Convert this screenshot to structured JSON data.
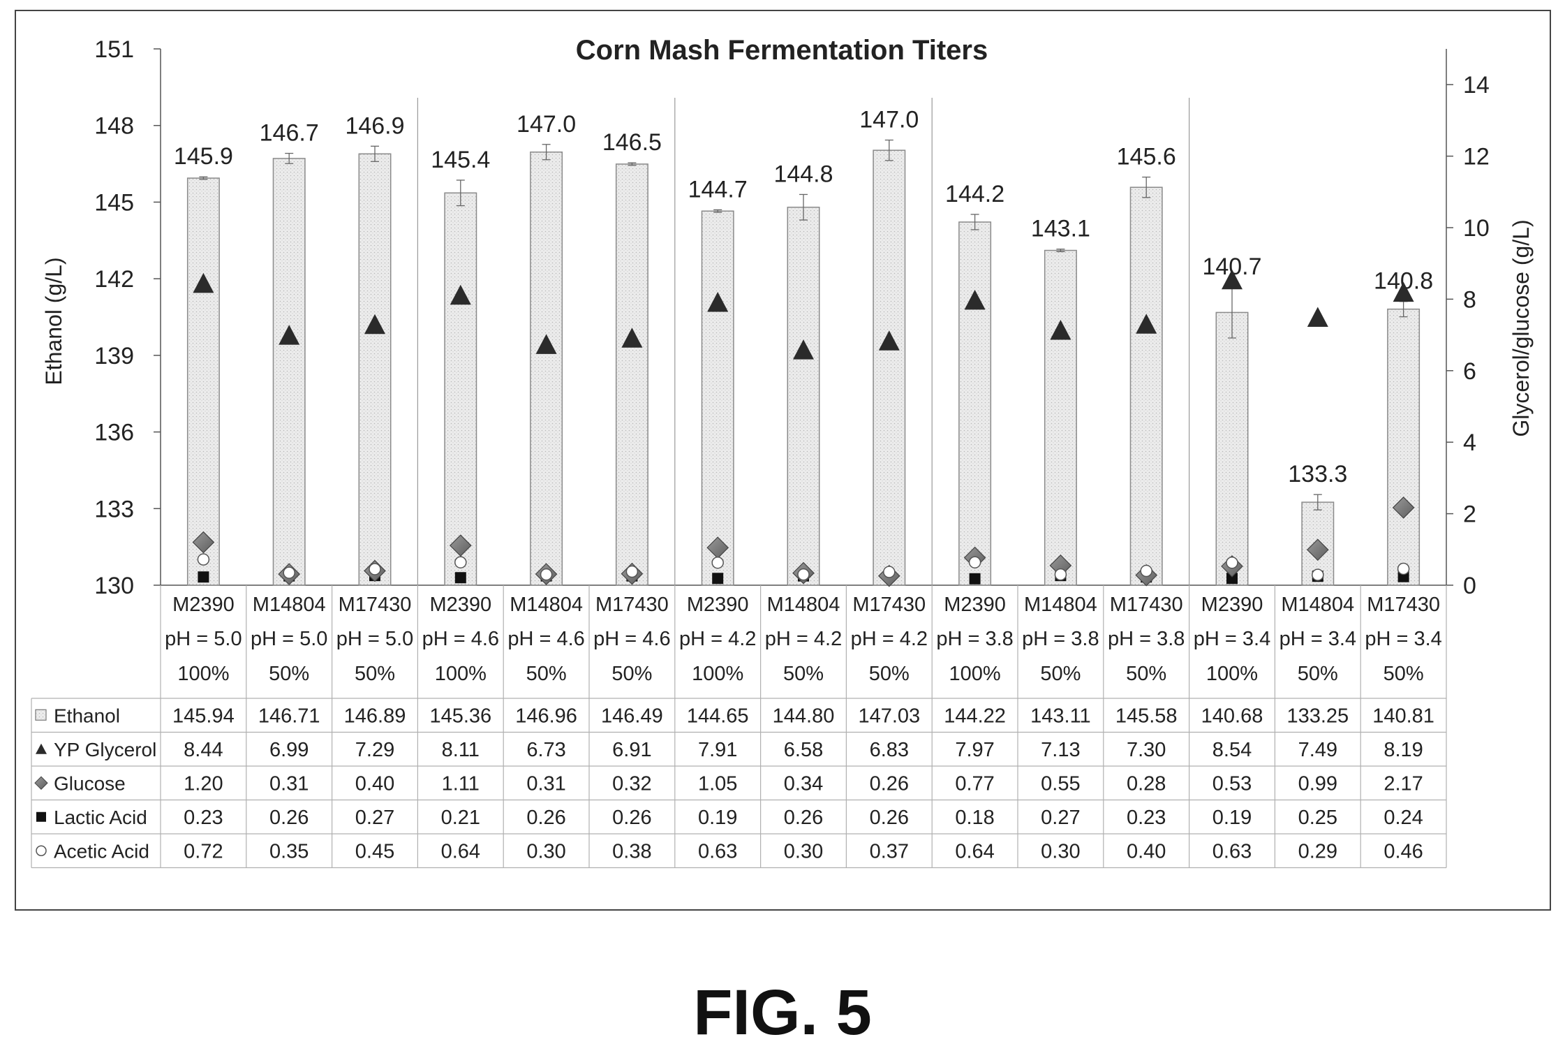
{
  "chart_data": {
    "type": "bar",
    "title": "Corn Mash Fermentation Titers",
    "ylabel": "Ethanol (g/L)",
    "y2label": "Glycerol/glucose (g/L)",
    "ylim": [
      130,
      151
    ],
    "yticks": [
      "130",
      "133",
      "136",
      "139",
      "142",
      "145",
      "148",
      "151"
    ],
    "y2lim": [
      0,
      15
    ],
    "y2ticks": [
      "0",
      "2",
      "4",
      "6",
      "8",
      "10",
      "12",
      "14"
    ],
    "grid": false,
    "groups": 5,
    "categories": [
      [
        "M2390",
        "pH = 5.0",
        "100%"
      ],
      [
        "M14804",
        "pH = 5.0",
        "50%"
      ],
      [
        "M17430",
        "pH = 5.0",
        "50%"
      ],
      [
        "M2390",
        "pH = 4.6",
        "100%"
      ],
      [
        "M14804",
        "pH = 4.6",
        "50%"
      ],
      [
        "M17430",
        "pH = 4.6",
        "50%"
      ],
      [
        "M2390",
        "pH = 4.2",
        "100%"
      ],
      [
        "M14804",
        "pH = 4.2",
        "50%"
      ],
      [
        "M17430",
        "pH = 4.2",
        "50%"
      ],
      [
        "M2390",
        "pH = 3.8",
        "100%"
      ],
      [
        "M14804",
        "pH = 3.8",
        "50%"
      ],
      [
        "M17430",
        "pH = 3.8",
        "50%"
      ],
      [
        "M2390",
        "pH = 3.4",
        "100%"
      ],
      [
        "M14804",
        "pH = 3.4",
        "50%"
      ],
      [
        "M17430",
        "pH = 3.4",
        "50%"
      ]
    ],
    "bar_labels": [
      "145.9",
      "146.7",
      "146.9",
      "145.4",
      "147.0",
      "146.5",
      "144.7",
      "144.8",
      "147.0",
      "144.2",
      "143.1",
      "145.6",
      "140.7",
      "133.3",
      "140.8"
    ],
    "series": [
      {
        "name": "Ethanol",
        "marker": "bar",
        "axis": "left",
        "values": [
          145.94,
          146.71,
          146.89,
          145.36,
          146.96,
          146.49,
          144.65,
          144.8,
          147.03,
          144.22,
          143.11,
          145.58,
          140.68,
          133.25,
          140.81
        ],
        "labels": [
          "145.94",
          "146.71",
          "146.89",
          "145.36",
          "146.96",
          "146.49",
          "144.65",
          "144.80",
          "147.03",
          "144.22",
          "143.11",
          "145.58",
          "140.68",
          "133.25",
          "140.81"
        ],
        "error": [
          0.05,
          0.2,
          0.3,
          0.5,
          0.3,
          0.05,
          0.05,
          0.5,
          0.4,
          0.3,
          0.05,
          0.4,
          1.0,
          0.3,
          0.3
        ]
      },
      {
        "name": "YP Glycerol",
        "marker": "triangle",
        "axis": "right",
        "values": [
          8.44,
          6.99,
          7.29,
          8.11,
          6.73,
          6.91,
          7.91,
          6.58,
          6.83,
          7.97,
          7.13,
          7.3,
          8.54,
          7.49,
          8.19
        ],
        "labels": [
          "8.44",
          "6.99",
          "7.29",
          "8.11",
          "6.73",
          "6.91",
          "7.91",
          "6.58",
          "6.83",
          "7.97",
          "7.13",
          "7.30",
          "8.54",
          "7.49",
          "8.19"
        ]
      },
      {
        "name": "Glucose",
        "marker": "diamond",
        "axis": "right",
        "values": [
          1.2,
          0.31,
          0.4,
          1.11,
          0.31,
          0.32,
          1.05,
          0.34,
          0.26,
          0.77,
          0.55,
          0.28,
          0.53,
          0.99,
          2.17
        ],
        "labels": [
          "1.20",
          "0.31",
          "0.40",
          "1.11",
          "0.31",
          "0.32",
          "1.05",
          "0.34",
          "0.26",
          "0.77",
          "0.55",
          "0.28",
          "0.53",
          "0.99",
          "2.17"
        ]
      },
      {
        "name": "Lactic Acid",
        "marker": "square",
        "axis": "right",
        "values": [
          0.23,
          0.26,
          0.27,
          0.21,
          0.26,
          0.26,
          0.19,
          0.26,
          0.26,
          0.18,
          0.27,
          0.23,
          0.19,
          0.25,
          0.24
        ],
        "labels": [
          "0.23",
          "0.26",
          "0.27",
          "0.21",
          "0.26",
          "0.26",
          "0.19",
          "0.26",
          "0.26",
          "0.18",
          "0.27",
          "0.23",
          "0.19",
          "0.25",
          "0.24"
        ]
      },
      {
        "name": "Acetic Acid",
        "marker": "circle",
        "axis": "right",
        "values": [
          0.72,
          0.35,
          0.45,
          0.64,
          0.3,
          0.38,
          0.63,
          0.3,
          0.37,
          0.64,
          0.3,
          0.4,
          0.63,
          0.29,
          0.46
        ],
        "labels": [
          "0.72",
          "0.35",
          "0.45",
          "0.64",
          "0.30",
          "0.38",
          "0.63",
          "0.30",
          "0.37",
          "0.64",
          "0.30",
          "0.40",
          "0.63",
          "0.29",
          "0.46"
        ]
      }
    ],
    "colors": {
      "bar_fill": "#e9e9e9",
      "bar_stroke": "#8a8a8a",
      "triangle": "#2b2b2b",
      "diamond": "#7a7a7a",
      "square": "#111111",
      "circle": "#ffffff",
      "axis": "#555555",
      "table_line": "#b0b0b0"
    }
  },
  "figure": {
    "caption": "FIG. 5"
  }
}
